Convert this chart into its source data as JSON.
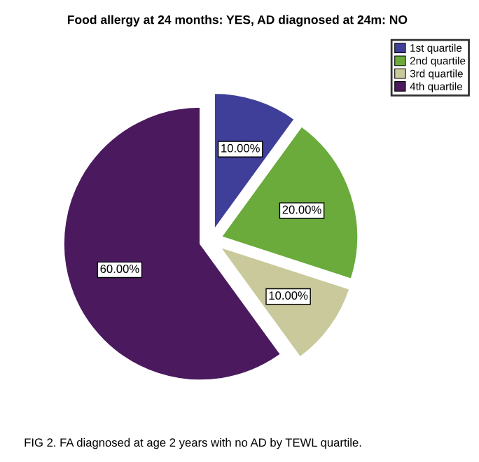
{
  "chart_data": {
    "type": "pie",
    "title": "Food allergy at 24 months: YES, AD diagnosed at 24m: NO",
    "categories": [
      "1st quartile",
      "2nd quartile",
      "3rd quartile",
      "4th quartile"
    ],
    "values": [
      10,
      20,
      10,
      60
    ],
    "value_labels": [
      "10.00%",
      "20.00%",
      "10.00%",
      "60.00%"
    ],
    "colors": [
      "#3f3f9a",
      "#6aab3c",
      "#c9c99b",
      "#4b1a5e"
    ],
    "legend": "top right",
    "annotations": [
      "FIG 2. FA diagnosed at age 2 years with no AD by TEWL quartile."
    ]
  }
}
